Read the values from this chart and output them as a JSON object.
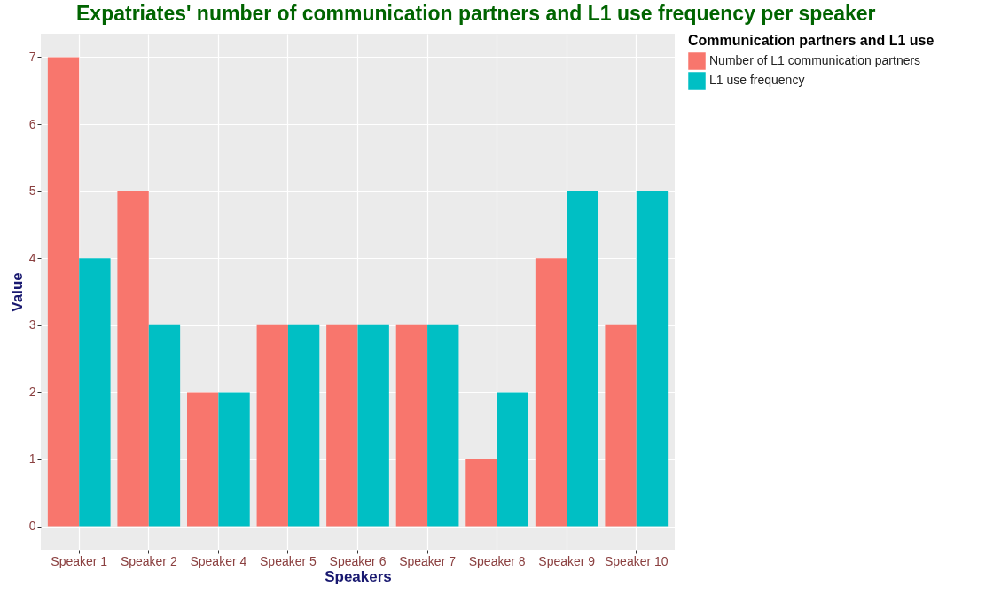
{
  "chart_data": {
    "type": "bar",
    "title": "Expatriates' number of communication partners and L1 use frequency per speaker",
    "xlabel": "Speakers",
    "ylabel": "Value",
    "legend_title": "Communication partners and L1 use",
    "categories": [
      "Speaker 1",
      "Speaker 2",
      "Speaker 4",
      "Speaker 5",
      "Speaker 6",
      "Speaker 7",
      "Speaker 8",
      "Speaker 9",
      "Speaker 10"
    ],
    "series": [
      {
        "name": "Number of L1 communication partners",
        "color": "#f8766d",
        "values": [
          7,
          5,
          2,
          3,
          3,
          3,
          1,
          4,
          3
        ]
      },
      {
        "name": "L1 use frequency",
        "color": "#00bfc4",
        "values": [
          4,
          3,
          2,
          3,
          3,
          3,
          2,
          5,
          5
        ]
      }
    ],
    "ylim": [
      -0.35,
      7.35
    ],
    "yticks": [
      0,
      1,
      2,
      3,
      4,
      5,
      6,
      7
    ],
    "grid": true,
    "legend": "right"
  }
}
